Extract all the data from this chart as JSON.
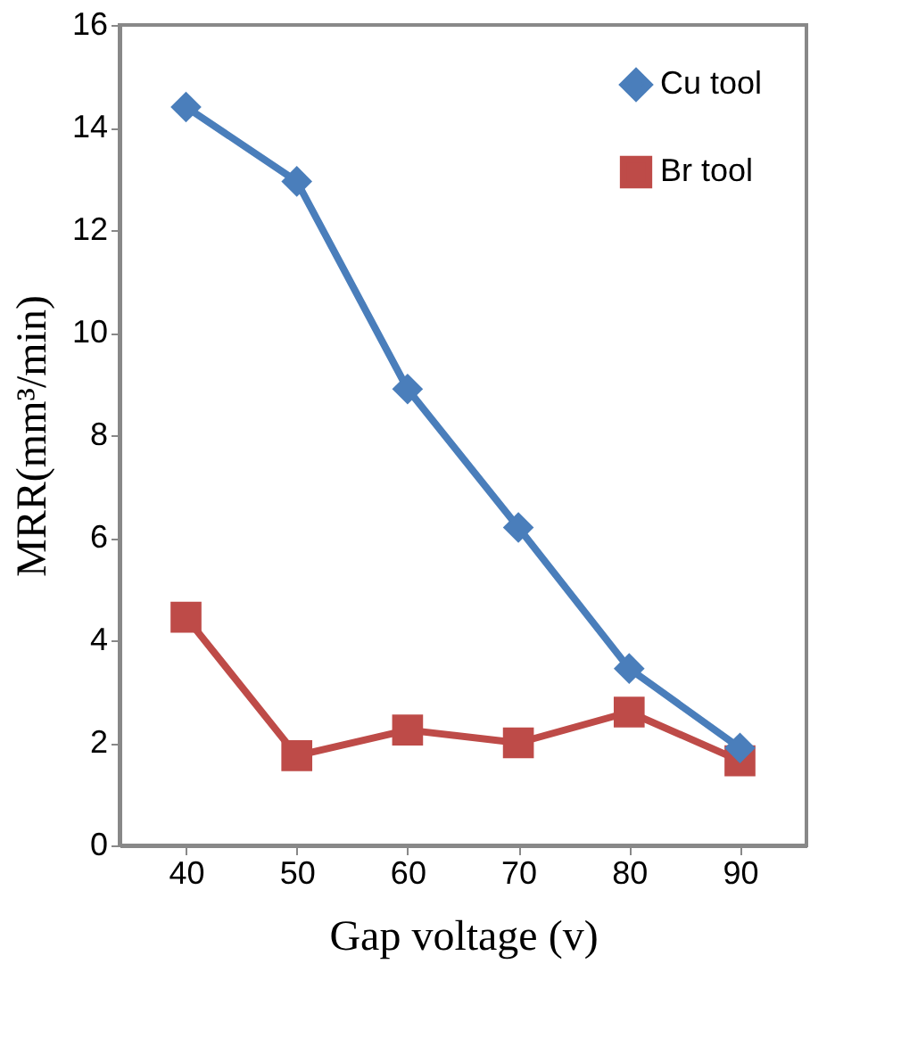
{
  "chart_data": {
    "type": "line",
    "xlabel": "Gap voltage (v)",
    "ylabel": "MRR(mm³/min)",
    "categories": [
      "40",
      "50",
      "60",
      "70",
      "80",
      "90"
    ],
    "series": [
      {
        "name": "Cu tool",
        "color": "#4a7ebb",
        "marker": "diamond",
        "values": [
          14.4,
          12.95,
          8.9,
          6.2,
          3.45,
          1.9
        ]
      },
      {
        "name": "Br tool",
        "color": "#be4b48",
        "marker": "square",
        "values": [
          4.45,
          1.75,
          2.25,
          2.0,
          2.6,
          1.65
        ]
      }
    ],
    "ylim": [
      0,
      16
    ],
    "yticks": [
      0,
      2,
      4,
      6,
      8,
      10,
      12,
      14,
      16
    ],
    "grid": false,
    "legend": "top right"
  }
}
